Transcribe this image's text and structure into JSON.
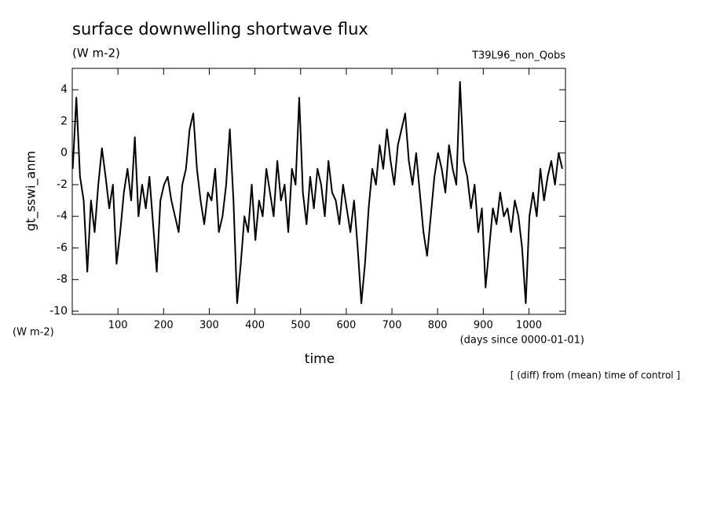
{
  "chart_data": {
    "type": "line",
    "title": "surface downwelling shortwave flux",
    "subtitle": "(W m-2)",
    "run_label": "T39L96_non_Qobs",
    "y_label": "gt_sswi_anm",
    "y_units": "(W m-2)",
    "x_label": "time",
    "x_units": "(days since 0000-01-01)",
    "note": "[ (diff) from (mean) time of control ]",
    "xlim": [
      0,
      1080
    ],
    "ylim": [
      -10.2,
      5.35
    ],
    "xticks": [
      100,
      200,
      300,
      400,
      500,
      600,
      700,
      800,
      900,
      1000
    ],
    "yticks": [
      -10,
      -8,
      -6,
      -4,
      -2,
      0,
      2,
      4
    ],
    "grid": false,
    "series": [
      {
        "color": "#000000",
        "x": [
          1,
          9,
          17,
          25,
          33,
          41,
          49,
          57,
          65,
          73,
          81,
          89,
          97,
          105,
          113,
          121,
          129,
          137,
          145,
          153,
          161,
          169,
          177,
          185,
          193,
          201,
          209,
          217,
          225,
          233,
          241,
          249,
          257,
          265,
          273,
          281,
          289,
          297,
          305,
          313,
          321,
          329,
          337,
          345,
          353,
          361,
          369,
          377,
          385,
          393,
          401,
          409,
          417,
          425,
          433,
          441,
          449,
          457,
          465,
          473,
          481,
          489,
          497,
          505,
          513,
          521,
          529,
          537,
          545,
          553,
          561,
          569,
          577,
          585,
          593,
          601,
          609,
          617,
          625,
          633,
          641,
          649,
          657,
          665,
          673,
          681,
          689,
          697,
          705,
          713,
          721,
          729,
          737,
          745,
          753,
          761,
          769,
          777,
          785,
          793,
          801,
          809,
          817,
          825,
          833,
          841,
          849,
          857,
          865,
          873,
          881,
          889,
          897,
          905,
          913,
          921,
          929,
          937,
          945,
          953,
          961,
          969,
          977,
          985,
          993,
          1001,
          1009,
          1017,
          1025,
          1033,
          1041,
          1049,
          1057,
          1065,
          1073
        ],
        "values": [
          -1,
          3.5,
          -1.5,
          -3,
          -7.5,
          -3,
          -5,
          -2,
          0.3,
          -1.5,
          -3.5,
          -2,
          -7,
          -5,
          -2.5,
          -1,
          -3,
          1,
          -4,
          -2,
          -3.5,
          -1.5,
          -4.5,
          -7.5,
          -3,
          -2,
          -1.5,
          -3,
          -4,
          -5,
          -2,
          -1,
          1.5,
          2.5,
          -1,
          -3,
          -4.5,
          -2.5,
          -3,
          -1,
          -5,
          -4,
          -2,
          1.5,
          -3,
          -9.5,
          -7,
          -4,
          -5,
          -2,
          -5.5,
          -3,
          -4,
          -1,
          -2.5,
          -4,
          -0.5,
          -3,
          -2,
          -5,
          -1,
          -2,
          3.5,
          -2.5,
          -4.5,
          -1.5,
          -3.5,
          -1,
          -2,
          -4,
          -0.5,
          -2.5,
          -3,
          -4.5,
          -2,
          -3.5,
          -5,
          -3,
          -6,
          -9.5,
          -7,
          -3.5,
          -1,
          -2,
          0.5,
          -1,
          1.5,
          -0.5,
          -2,
          0.5,
          1.5,
          2.5,
          -0.5,
          -2,
          0,
          -2.5,
          -5,
          -6.5,
          -4,
          -1.5,
          0,
          -1,
          -2.5,
          0.5,
          -1,
          -2,
          4.5,
          -0.5,
          -1.5,
          -3.5,
          -2,
          -5,
          -3.5,
          -8.5,
          -6,
          -3.5,
          -4.5,
          -2.5,
          -4,
          -3.5,
          -5,
          -3,
          -4,
          -6,
          -9.5,
          -4,
          -2.5,
          -4,
          -1,
          -3,
          -1.5,
          -0.5,
          -2,
          0,
          -1
        ]
      }
    ]
  }
}
